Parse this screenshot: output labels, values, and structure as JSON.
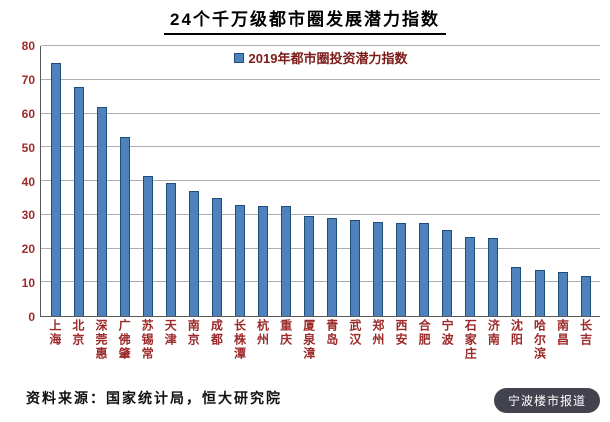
{
  "chart_data": {
    "type": "bar",
    "title": "24个千万级都市圈发展潜力指数",
    "legend": "2019年都市圈投资潜力指数",
    "categories": [
      "上海",
      "北京",
      "深莞惠",
      "广佛肇",
      "苏锡常",
      "天津",
      "南京",
      "成都",
      "长株潭",
      "杭州",
      "重庆",
      "厦泉漳",
      "青岛",
      "武汉",
      "郑州",
      "西安",
      "合肥",
      "宁波",
      "石家庄",
      "济南",
      "沈阳",
      "哈尔滨",
      "南昌",
      "长吉"
    ],
    "values": [
      75,
      68,
      62,
      53,
      41.5,
      39.5,
      37,
      35,
      33,
      32.5,
      32.5,
      29.5,
      29,
      28.5,
      28,
      27.5,
      27.5,
      25.5,
      23.5,
      23,
      14.5,
      13.5,
      13,
      12
    ],
    "ylim": [
      0,
      80
    ],
    "yticks": [
      0,
      10,
      20,
      30,
      40,
      50,
      60,
      70,
      80
    ],
    "grid": true,
    "legend_position": "top-center",
    "colors": {
      "bar_fill": "#4F81BD",
      "bar_border": "#1F4E79",
      "axis_label": "#9C2A2A",
      "legend_text": "#7B1A16",
      "gridline": "#ADADAD"
    }
  },
  "footer": {
    "source": "资料来源：国家统计局，恒大研究院",
    "watermark": "宁波楼市报道"
  }
}
